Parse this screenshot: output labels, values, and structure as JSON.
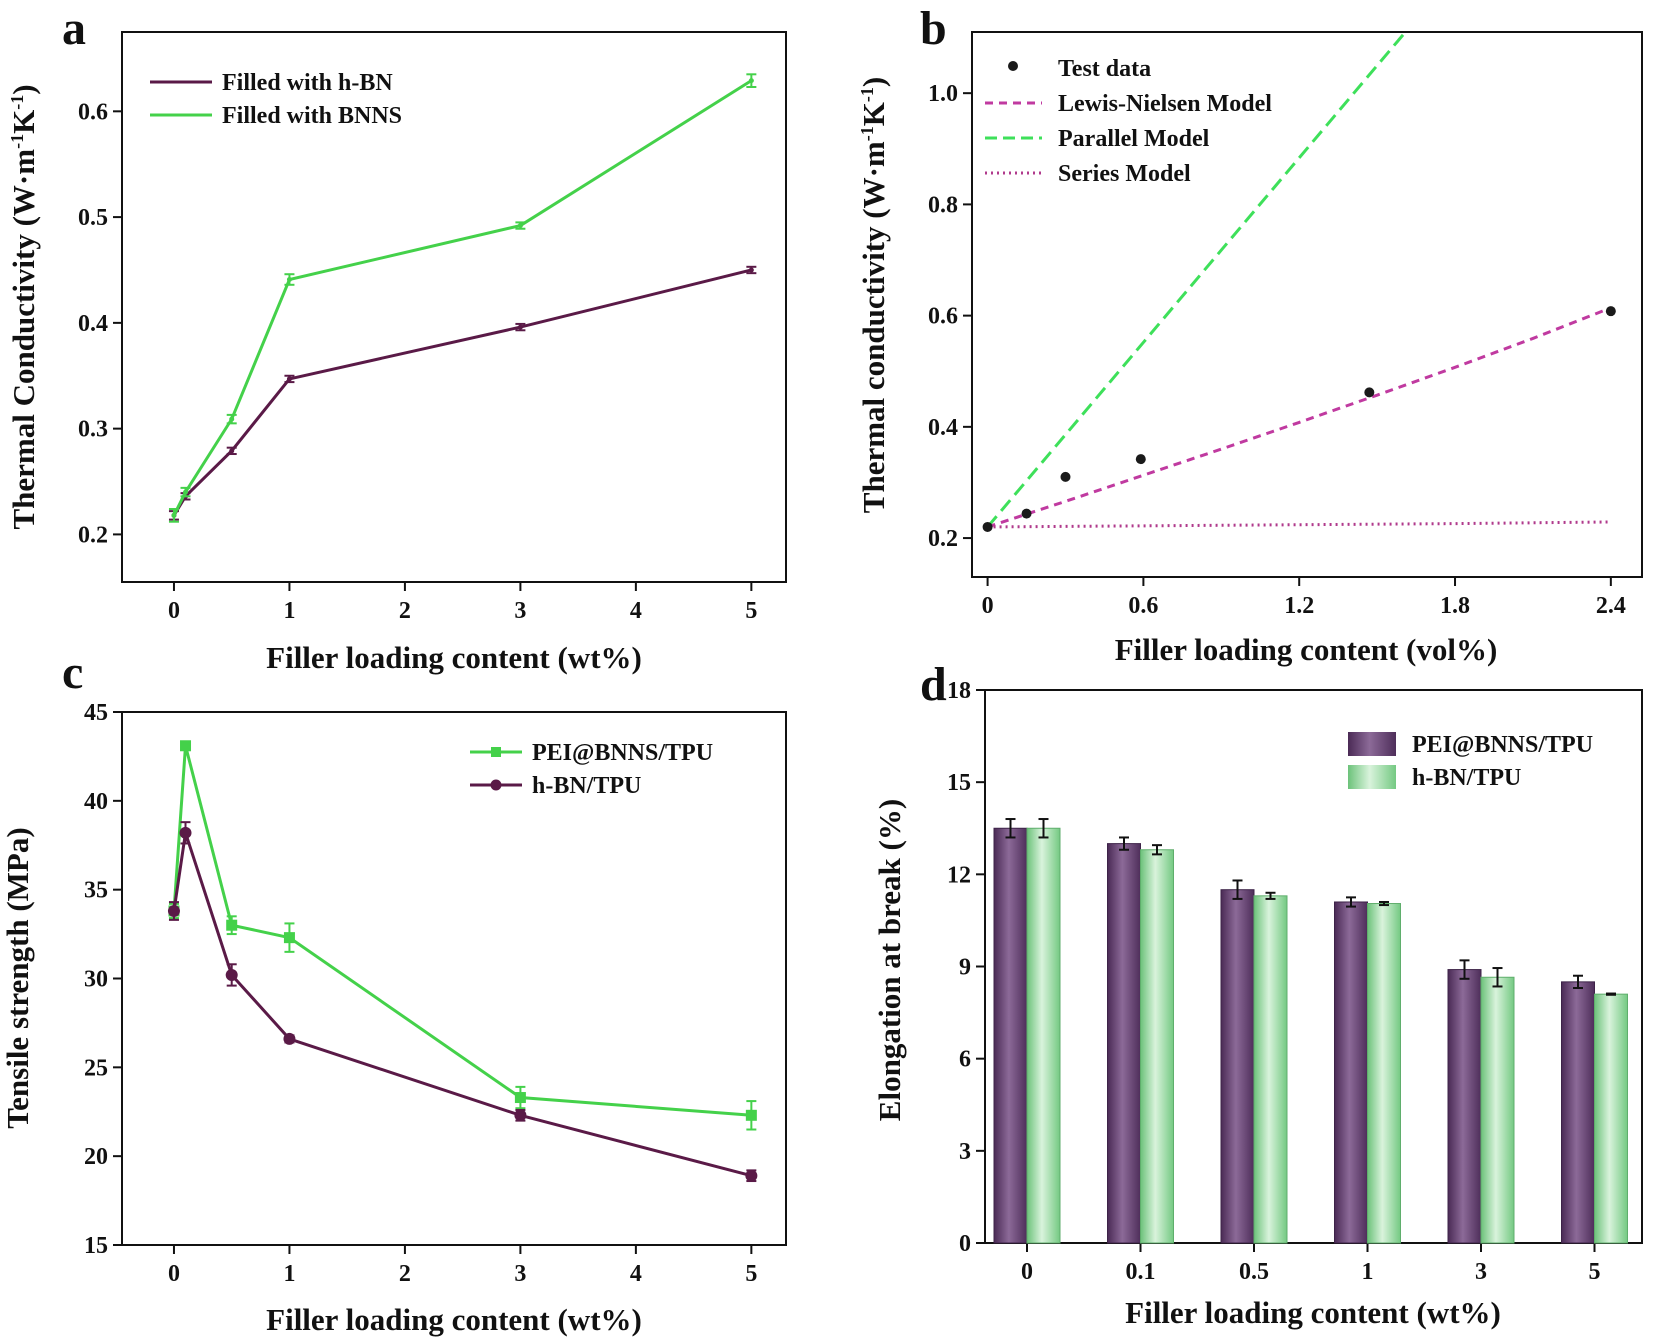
{
  "chart_data": [
    {
      "panel": "a",
      "type": "line",
      "xlabel": "Filler loading content (wt%)",
      "ylabel_main": "Thermal Conductivity (W·m",
      "ylabel_sup1": "-1",
      "ylabel_mid": "K",
      "ylabel_sup2": "-1",
      "ylabel_end": ")",
      "xlim": [
        -0.45,
        5.3
      ],
      "ylim": [
        0.155,
        0.675
      ],
      "xticks": [
        0,
        1,
        2,
        3,
        4,
        5
      ],
      "xtick_labels": [
        "0",
        "1",
        "2",
        "3",
        "4",
        "5"
      ],
      "yticks": [
        0.2,
        0.3,
        0.4,
        0.5,
        0.6
      ],
      "ytick_labels": [
        "0.2",
        "0.3",
        "0.4",
        "0.5",
        "0.6"
      ],
      "legend_position": "top-left",
      "series": [
        {
          "name": "Filled with h-BN",
          "color": "#5a1a47",
          "x": [
            0,
            0.1,
            0.5,
            1,
            3,
            5
          ],
          "y": [
            0.218,
            0.236,
            0.279,
            0.347,
            0.396,
            0.45
          ],
          "err": [
            0.004,
            0.003,
            0.003,
            0.003,
            0.003,
            0.003
          ]
        },
        {
          "name": "Filled with BNNS",
          "color": "#44d14a",
          "x": [
            0,
            0.1,
            0.5,
            1,
            3,
            5
          ],
          "y": [
            0.218,
            0.24,
            0.309,
            0.441,
            0.492,
            0.629
          ],
          "err": [
            0.006,
            0.004,
            0.004,
            0.005,
            0.003,
            0.006
          ]
        }
      ]
    },
    {
      "panel": "b",
      "type": "scatter",
      "xlabel": "Filler loading content (vol%)",
      "ylabel_main": "Thermal conductivity (W·m",
      "ylabel_sup1": "-1",
      "ylabel_mid": "K",
      "ylabel_sup2": "-1",
      "ylabel_end": ")",
      "xlim": [
        -0.06,
        2.52
      ],
      "ylim": [
        0.13,
        1.11
      ],
      "xticks": [
        0,
        0.6,
        1.2,
        1.8,
        2.4
      ],
      "xtick_labels": [
        "0",
        "0.6",
        "1.2",
        "1.8",
        "2.4"
      ],
      "yticks": [
        0.2,
        0.4,
        0.6,
        0.8,
        1.0
      ],
      "ytick_labels": [
        "0.2",
        "0.4",
        "0.6",
        "0.8",
        "1.0"
      ],
      "legend_position": "top-left",
      "test_data": {
        "name": "Test data",
        "color": "#1a1a1a",
        "x": [
          0,
          0.15,
          0.3,
          0.59,
          1.47,
          2.4
        ],
        "y": [
          0.22,
          0.244,
          0.31,
          0.342,
          0.462,
          0.608
        ]
      },
      "lines": [
        {
          "name": "Lewis-Nielsen Model",
          "color": "#c03aa0",
          "style": "dashed",
          "x": [
            0,
            0.3,
            0.6,
            0.9,
            1.2,
            1.5,
            1.8,
            2.1,
            2.4
          ],
          "y": [
            0.22,
            0.266,
            0.313,
            0.36,
            0.408,
            0.457,
            0.507,
            0.559,
            0.614
          ]
        },
        {
          "name": "Parallel Model",
          "color": "#3ee05a",
          "style": "long-dashed",
          "x": [
            0,
            1.6
          ],
          "y": [
            0.22,
            1.105
          ]
        },
        {
          "name": "Series Model",
          "color": "#b03a8c",
          "style": "dotted",
          "x": [
            0,
            0.6,
            1.2,
            1.8,
            2.4
          ],
          "y": [
            0.22,
            0.222,
            0.224,
            0.226,
            0.229
          ]
        }
      ]
    },
    {
      "panel": "c",
      "type": "line",
      "xlabel": "Filler loading content (wt%)",
      "ylabel": "Tensile strength (MPa)",
      "xlim": [
        -0.45,
        5.3
      ],
      "ylim": [
        15,
        45
      ],
      "xticks": [
        0,
        1,
        2,
        3,
        4,
        5
      ],
      "xtick_labels": [
        "0",
        "1",
        "2",
        "3",
        "4",
        "5"
      ],
      "yticks": [
        15,
        20,
        25,
        30,
        35,
        40,
        45
      ],
      "ytick_labels": [
        "15",
        "20",
        "25",
        "30",
        "35",
        "40",
        "45"
      ],
      "legend_position": "top-right",
      "series": [
        {
          "name": "PEI@BNNS/TPU",
          "color": "#44d14a",
          "marker": "square",
          "x": [
            0,
            0.1,
            0.5,
            1,
            3,
            5
          ],
          "y": [
            33.8,
            43.1,
            33.0,
            32.3,
            23.3,
            22.3
          ],
          "err": [
            0.4,
            0.2,
            0.5,
            0.8,
            0.6,
            0.8
          ]
        },
        {
          "name": "h-BN/TPU",
          "color": "#5a1a47",
          "marker": "circle",
          "x": [
            0,
            0.1,
            0.5,
            1,
            3,
            5
          ],
          "y": [
            33.8,
            38.2,
            30.2,
            26.6,
            22.3,
            18.9
          ],
          "err": [
            0.5,
            0.6,
            0.6,
            0.2,
            0.3,
            0.3
          ]
        }
      ]
    },
    {
      "panel": "d",
      "type": "bar",
      "xlabel": "Filler loading content (wt%)",
      "ylabel": "Elongation at break (%)",
      "ylim": [
        0,
        18
      ],
      "yticks": [
        0,
        3,
        6,
        9,
        12,
        15,
        18
      ],
      "ytick_labels": [
        "0",
        "3",
        "6",
        "9",
        "12",
        "15",
        "18"
      ],
      "categories": [
        "0",
        "0.1",
        "0.5",
        "1",
        "3",
        "5"
      ],
      "legend_position": "top-right",
      "series": [
        {
          "name": "PEI@BNNS/TPU",
          "color": "#6e4a7a",
          "values": [
            13.5,
            13.0,
            11.5,
            11.1,
            8.9,
            8.5
          ],
          "err": [
            0.3,
            0.2,
            0.3,
            0.15,
            0.3,
            0.2
          ]
        },
        {
          "name": "h-BN/TPU",
          "color": "#9fdca8",
          "values": [
            13.5,
            12.8,
            11.3,
            11.05,
            8.65,
            8.1
          ],
          "err": [
            0.3,
            0.15,
            0.1,
            0.05,
            0.3,
            0.02
          ]
        }
      ]
    }
  ]
}
